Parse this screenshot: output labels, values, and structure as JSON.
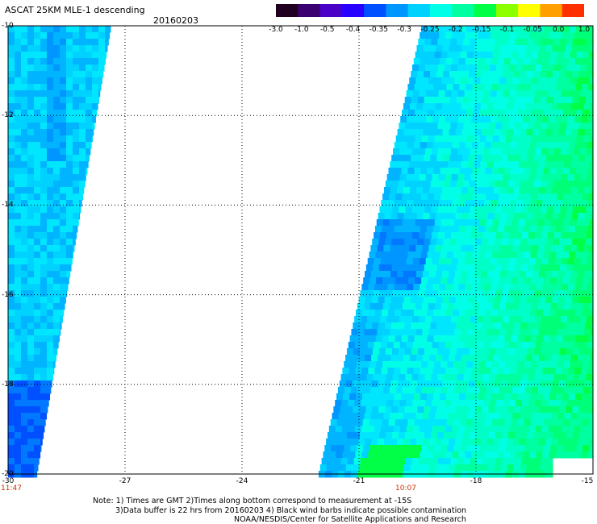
{
  "header": {
    "title": "ASCAT 25KM MLE-1 descending",
    "date": "20160203"
  },
  "colorbar": {
    "labels": [
      "-3.0",
      "-1.0",
      "-0.5",
      "-0.4",
      "-0.35",
      "-0.3",
      "-0.25",
      "-0.2",
      "-0.15",
      "-0.1",
      "-0.05",
      "0.0",
      "1.0"
    ],
    "colors": [
      "#200020",
      "#3a0070",
      "#4b00c8",
      "#2800ff",
      "#0050ff",
      "#0096ff",
      "#00d2ff",
      "#00ffe6",
      "#00ffa0",
      "#00ff46",
      "#8cff00",
      "#ffff00",
      "#ffa000",
      "#ff3000"
    ]
  },
  "axes": {
    "lat_ticks": [
      "-10",
      "-12",
      "-14",
      "-16",
      "-18",
      "-20"
    ],
    "lon_ticks": [
      "-30",
      "-27",
      "-24",
      "-21",
      "-18",
      "-15"
    ],
    "lat_range": [
      -20,
      -10
    ],
    "lon_range": [
      -30,
      -15
    ]
  },
  "times": [
    {
      "label": "11:47",
      "lon": -30
    },
    {
      "label": "10:07",
      "lon": -19.8
    }
  ],
  "notes": {
    "line1": "Note: 1) Times are GMT 2)Times along bottom correspond to measurement at -15S",
    "line2": "3)Data buffer is 22 hrs from 20160203 4) Black wind barbs indicate possible contamination",
    "line3": "NOAA/NESDIS/Center for Satellite Applications and Research"
  }
}
